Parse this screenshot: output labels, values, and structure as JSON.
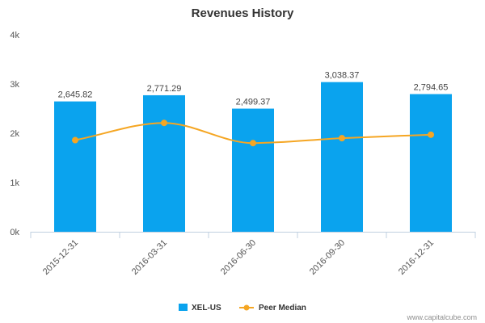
{
  "chart_data": {
    "type": "bar",
    "title": "Revenues History",
    "categories": [
      "2015-12-31",
      "2016-03-31",
      "2016-06-30",
      "2016-09-30",
      "2016-12-31"
    ],
    "series": [
      {
        "name": "XEL-US",
        "type": "bar",
        "color": "#0aa3ee",
        "values": [
          2645.82,
          2771.29,
          2499.37,
          3038.37,
          2794.65
        ],
        "labels": [
          "2,645.82",
          "2,771.29",
          "2,499.37",
          "3,038.37",
          "2,794.65"
        ]
      },
      {
        "name": "Peer Median",
        "type": "line",
        "color": "#f5a623",
        "values": [
          1860,
          2210,
          1800,
          1900,
          1970
        ]
      }
    ],
    "y_ticks": [
      {
        "value": 0,
        "label": "0k"
      },
      {
        "value": 1000,
        "label": "1k"
      },
      {
        "value": 2000,
        "label": "2k"
      },
      {
        "value": 3000,
        "label": "3k"
      },
      {
        "value": 4000,
        "label": "4k"
      }
    ],
    "ylim": [
      0,
      4000
    ],
    "grid": false,
    "legend_position": "bottom-center"
  },
  "credit": "www.capitalcube.com"
}
